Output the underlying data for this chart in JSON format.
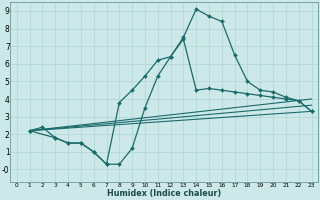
{
  "xlabel": "Humidex (Indice chaleur)",
  "bg_color": "#cde8e8",
  "grid_color": "#b0d4d4",
  "line_color": "#1a6b6b",
  "xlim": [
    -0.5,
    23.5
  ],
  "ylim": [
    -0.7,
    9.5
  ],
  "xticks": [
    0,
    1,
    2,
    3,
    4,
    5,
    6,
    7,
    8,
    9,
    10,
    11,
    12,
    13,
    14,
    15,
    16,
    17,
    18,
    19,
    20,
    21,
    22,
    23
  ],
  "yticks": [
    0,
    1,
    2,
    3,
    4,
    5,
    6,
    7,
    8,
    9
  ],
  "ytick_labels": [
    "-0",
    "1",
    "2",
    "3",
    "4",
    "5",
    "6",
    "7",
    "8",
    "9"
  ],
  "line1_x": [
    1,
    2,
    3,
    4,
    5,
    6,
    7,
    8,
    9,
    10,
    11,
    12,
    13,
    14,
    15,
    16,
    17,
    18,
    19,
    20,
    21,
    22,
    23
  ],
  "line1_y": [
    2.2,
    2.4,
    1.8,
    1.5,
    1.5,
    1.0,
    0.3,
    0.3,
    1.2,
    3.5,
    5.3,
    6.4,
    7.5,
    9.1,
    8.7,
    8.4,
    6.5,
    5.0,
    4.5,
    4.4,
    4.1,
    3.9,
    3.3
  ],
  "line2_x": [
    1,
    3,
    4,
    5,
    6,
    7,
    8,
    9,
    10,
    11,
    12,
    13,
    14,
    15,
    16,
    17,
    18,
    19,
    20,
    21,
    22,
    23
  ],
  "line2_y": [
    2.2,
    1.8,
    1.5,
    1.5,
    1.0,
    0.3,
    3.8,
    4.5,
    5.3,
    6.2,
    6.4,
    7.4,
    4.5,
    4.6,
    4.5,
    4.4,
    4.3,
    4.2,
    4.1,
    4.0,
    3.9,
    3.3
  ],
  "line3_x": [
    1,
    23
  ],
  "line3_y": [
    2.2,
    4.0
  ],
  "line4_x": [
    1,
    23
  ],
  "line4_y": [
    2.2,
    3.3
  ],
  "line5_x": [
    1,
    23
  ],
  "line5_y": [
    2.2,
    3.65
  ]
}
